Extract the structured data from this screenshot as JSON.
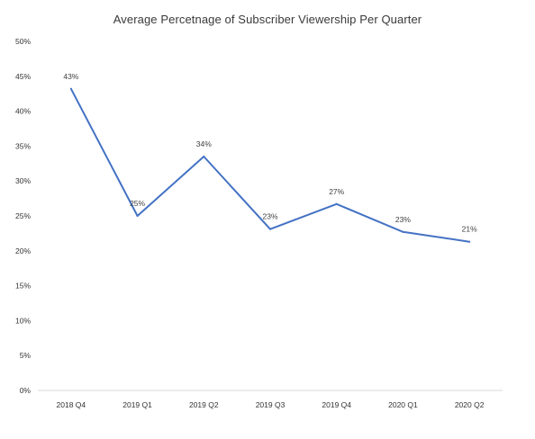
{
  "chart_data": {
    "type": "line",
    "title": "Average Percetnage of Subscriber Viewership Per Quarter",
    "xlabel": "",
    "ylabel": "",
    "categories": [
      "2018 Q4",
      "2019 Q1",
      "2019 Q2",
      "2019 Q3",
      "2019 Q4",
      "2020 Q1",
      "2020 Q2"
    ],
    "values": [
      43.2,
      25.0,
      33.5,
      23.1,
      26.7,
      22.7,
      21.3
    ],
    "data_labels": [
      "43%",
      "25%",
      "34%",
      "23%",
      "27%",
      "23%",
      "21%"
    ],
    "ylim": [
      0,
      50
    ],
    "yticks": [
      0,
      5,
      10,
      15,
      20,
      25,
      30,
      35,
      40,
      45,
      50
    ],
    "ytick_labels": [
      "0%",
      "5%",
      "10%",
      "15%",
      "20%",
      "25%",
      "30%",
      "35%",
      "40%",
      "45%",
      "50%"
    ],
    "grid": false,
    "legend": "none",
    "line_color": "#4472C4",
    "text_color": "#333333",
    "axis_color": "#d9d9d9"
  }
}
